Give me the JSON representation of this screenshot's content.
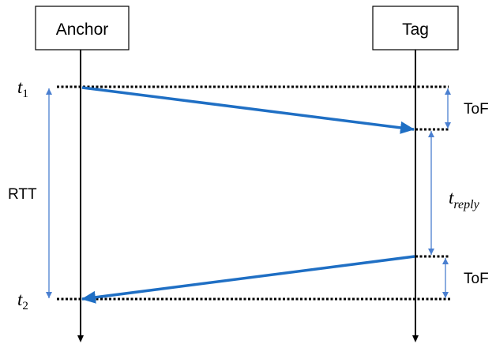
{
  "participants": {
    "anchor": "Anchor",
    "tag": "Tag"
  },
  "labels": {
    "t1_base": "t",
    "t1_sub": "1",
    "t2_base": "t",
    "t2_sub": "2",
    "rtt": "RTT",
    "tof_top": "ToF",
    "tof_bottom": "ToF",
    "treply_base": "t",
    "treply_sub": "reply"
  },
  "colors": {
    "message_arrow": "#1f6fc4",
    "dimension_arrow": "#4a7fd0"
  }
}
